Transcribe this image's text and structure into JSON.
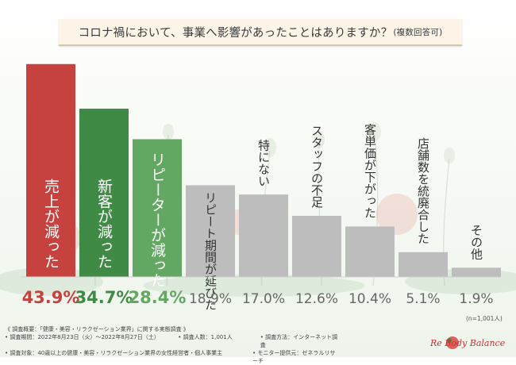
{
  "title": {
    "main": "コロナ禍において、事業へ影響があったことはありますか？",
    "sub": "(複数回答可)"
  },
  "chart_data": {
    "type": "bar",
    "title": "コロナ禍において、事業へ影響があったことはありますか？(複数回答可)",
    "categories": [
      "売上が減った",
      "新客が減った",
      "リピーターが減った",
      "リピート期間が延びた",
      "特にない",
      "スタッフの不足",
      "客単価が下がった",
      "店舗数を統廃合した",
      "その他"
    ],
    "values": [
      43.9,
      34.7,
      28.4,
      18.9,
      17.0,
      12.6,
      10.4,
      5.1,
      1.9
    ],
    "value_labels": [
      "43.9%",
      "34.7%",
      "28.4%",
      "18.9%",
      "17.0%",
      "12.6%",
      "10.4%",
      "5.1%",
      "1.9%"
    ],
    "colors": [
      "#c6423f",
      "#3f8a45",
      "#62a863",
      "#bdbdbd",
      "#bdbdbd",
      "#bdbdbd",
      "#bdbdbd",
      "#bdbdbd",
      "#bdbdbd"
    ],
    "value_colors": [
      "#c6423f",
      "#3f8a45",
      "#62a863",
      "#666666",
      "#666666",
      "#666666",
      "#666666",
      "#666666",
      "#666666"
    ],
    "label_colors": [
      "#ffffff",
      "#ffffff",
      "#ffffff",
      "#333333",
      "#333333",
      "#333333",
      "#333333",
      "#333333",
      "#333333"
    ],
    "ylim": [
      0,
      45
    ],
    "xlabel": "",
    "ylabel": "",
    "note": "(n=1,001人)"
  },
  "footer": {
    "survey_name": "《 調査概要：「健康・美容・リラクゼーション業界」に関する実態調査 》",
    "period": "• 調査期間：2022年8月23日（火）〜2022年8月27日（土）",
    "respondents": "• 調査人数：1,001人",
    "method": "• 調査方法：インターネット調査",
    "target": "• 調査対象：40歳以上の健康・美容・リラクゼーション業界の女性経営者・個人事業主",
    "provider": "• モニター提供元：ゼネラルリサーチ"
  },
  "logo": {
    "text": "Re Body Balance"
  }
}
